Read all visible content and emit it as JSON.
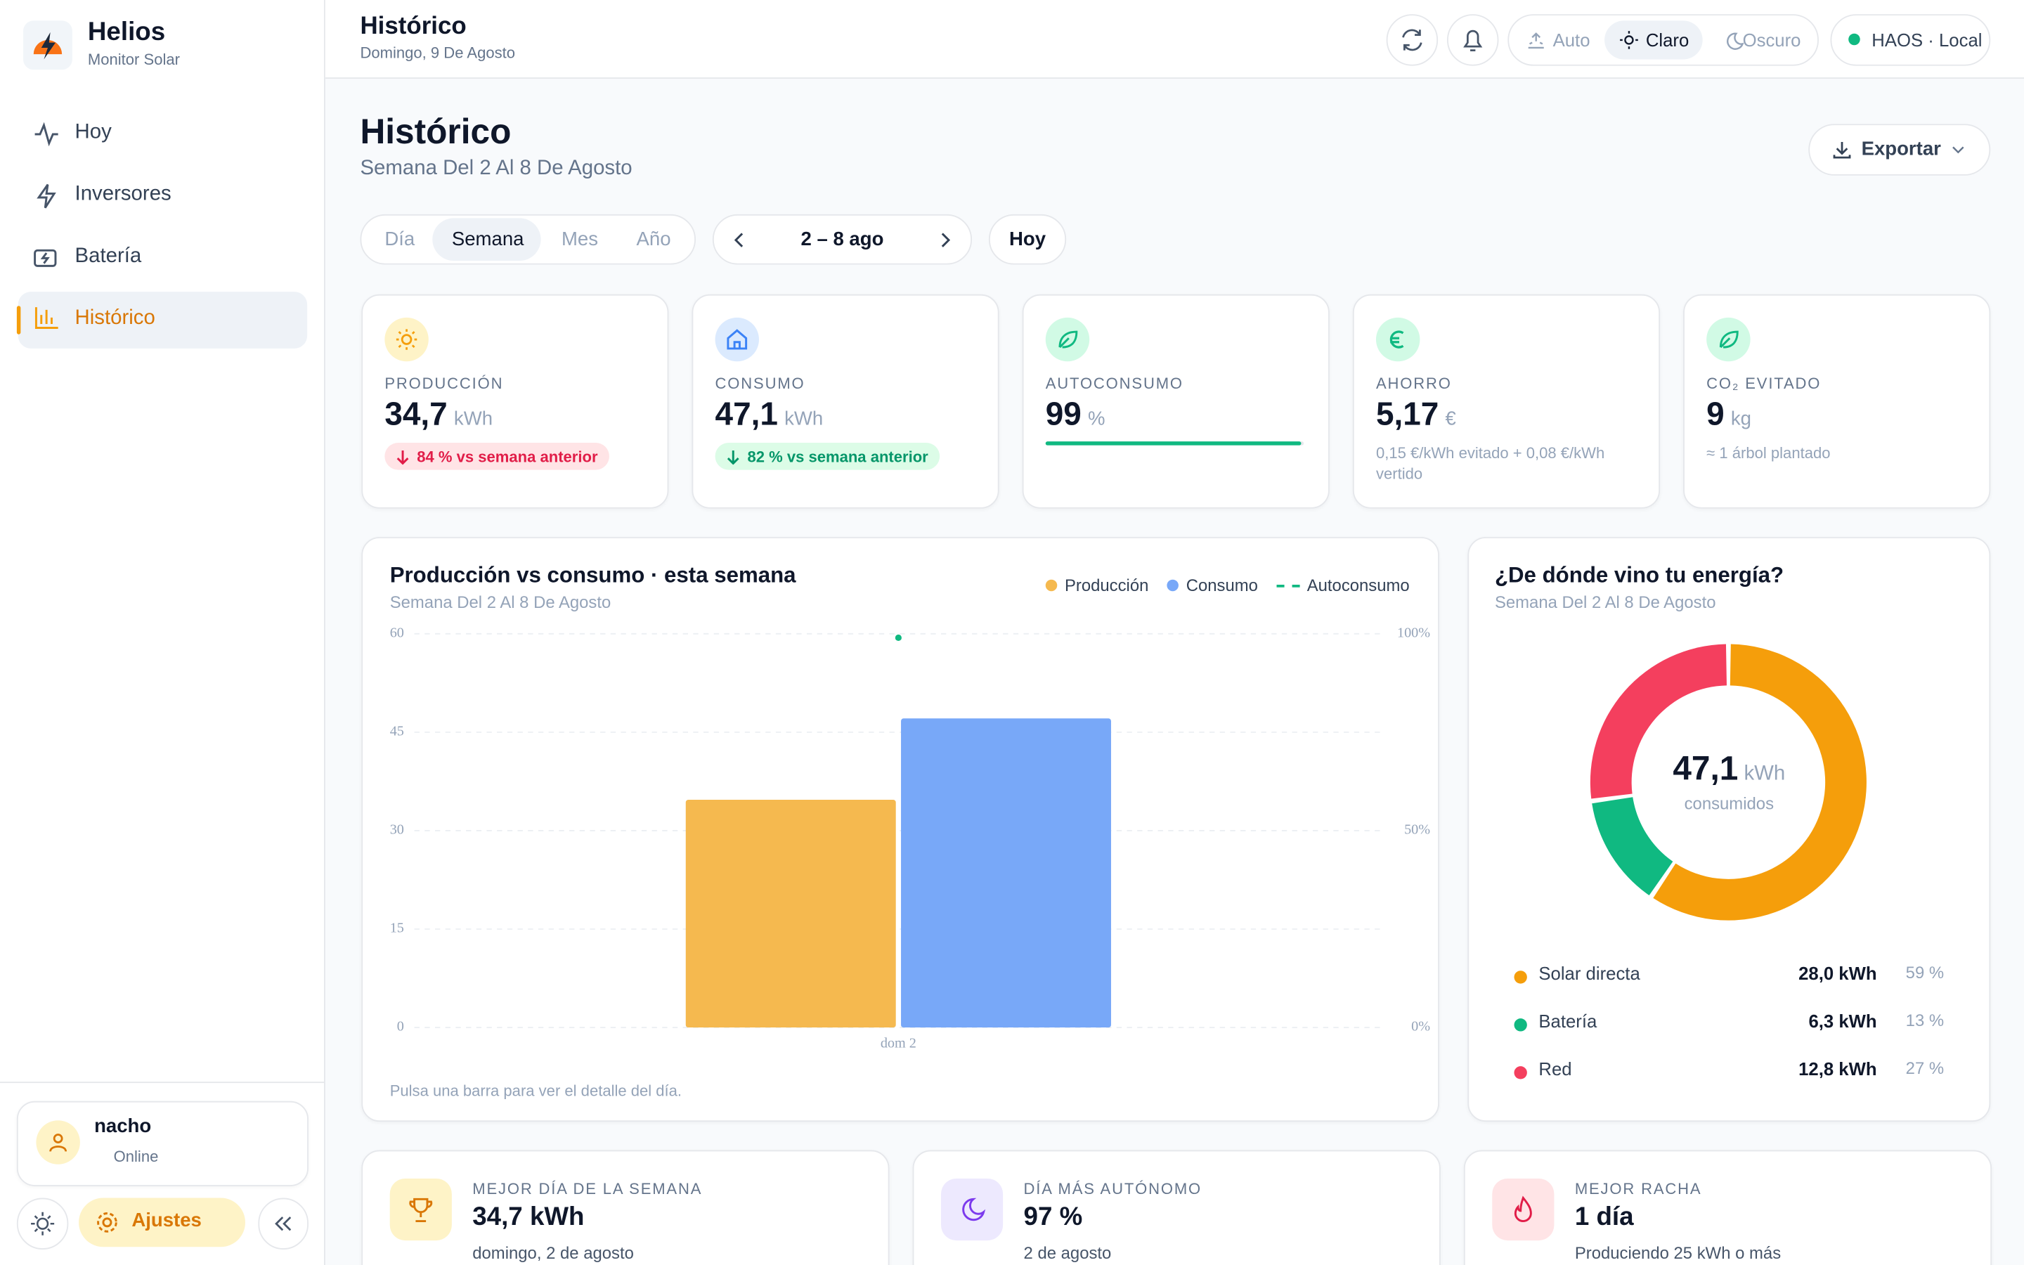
{
  "sidebar": {
    "brand": "Helios",
    "subtitle": "Monitor Solar",
    "nav": [
      "Hoy",
      "Inversores",
      "Batería",
      "Histórico"
    ],
    "user": {
      "name": "nacho",
      "status": "Online"
    },
    "settings": "Ajustes"
  },
  "header": {
    "title": "Histórico",
    "date": "Domingo, 9 De Agosto",
    "themes": [
      "Auto",
      "Claro",
      "Oscuro"
    ],
    "connection": "HAOS · Local"
  },
  "page": {
    "title": "Histórico",
    "subtitle": "Semana Del 2 Al 8 De Agosto",
    "export": "Exportar",
    "tabs": [
      "Día",
      "Semana",
      "Mes",
      "Año"
    ],
    "range": "2 – 8 ago",
    "today": "Hoy"
  },
  "cards": [
    {
      "label": "PRODUCCIÓN",
      "value": "34,7",
      "unit": "kWh",
      "note": "84 % vs semana anterior"
    },
    {
      "label": "CONSUMO",
      "value": "47,1",
      "unit": "kWh",
      "note": "82 % vs semana anterior"
    },
    {
      "label": "AUTOCONSUMO",
      "value": 99,
      "unit": "%"
    },
    {
      "label": "AHORRO",
      "value": "5,17",
      "unit": "€",
      "note": "0,15 €/kWh evitado + 0,08 €/kWh vertido"
    },
    {
      "label": "CO₂ EVITADO",
      "value": 9,
      "unit": "kg",
      "note": "≈ 1 árbol plantado"
    }
  ],
  "chart_data": [
    {
      "type": "bar",
      "title": "Producción vs consumo · esta semana",
      "subtitle": "Semana Del 2 Al 8 De Agosto",
      "categories": [
        "dom 2"
      ],
      "series": [
        {
          "name": "Producción",
          "color": "#f5b94f",
          "values": [
            34.7
          ]
        },
        {
          "name": "Consumo",
          "color": "#78a8f8",
          "values": [
            47.1
          ]
        },
        {
          "name": "Autoconsumo",
          "color": "#10b981",
          "values": [
            99
          ],
          "axis": "y2",
          "style": "dashed"
        }
      ],
      "ylim": [
        0,
        60
      ],
      "yticks": [
        0,
        15,
        30,
        45,
        60
      ],
      "y2lim": [
        0,
        100
      ],
      "y2ticks": [
        {
          "value": 0,
          "label": "0%"
        },
        {
          "value": 50,
          "label": "50%"
        },
        {
          "value": 100,
          "label": "100%"
        }
      ],
      "grid": true,
      "legend": "top-right",
      "note": "Pulsa una barra para ver el detalle del día."
    },
    {
      "type": "donut",
      "title": "¿De dónde vino tu energía?",
      "subtitle": "Semana Del 2 Al 8 De Agosto",
      "center_value": "47,1",
      "center_unit": "kWh",
      "center_label": "consumidos",
      "categories": [
        "Solar directa",
        "Batería",
        "Red"
      ],
      "colors": [
        "#f59e0b",
        "#10b981",
        "#f43f5e"
      ],
      "values": [
        28.0,
        6.3,
        12.8
      ],
      "value_labels": [
        "28,0 kWh",
        "6,3 kWh",
        "12,8 kWh"
      ],
      "percent_labels": [
        "59 %",
        "13 %",
        "27 %"
      ]
    }
  ],
  "highlights": [
    {
      "label": "MEJOR DÍA DE LA SEMANA",
      "value": "34,7 kWh",
      "note": "domingo, 2 de agosto"
    },
    {
      "label": "DÍA MÁS AUTÓNOMO",
      "value": "97 %",
      "note": "2 de agosto"
    },
    {
      "label": "MEJOR RACHA",
      "value": "1 día",
      "note": "Produciendo 25 kWh o más"
    }
  ]
}
